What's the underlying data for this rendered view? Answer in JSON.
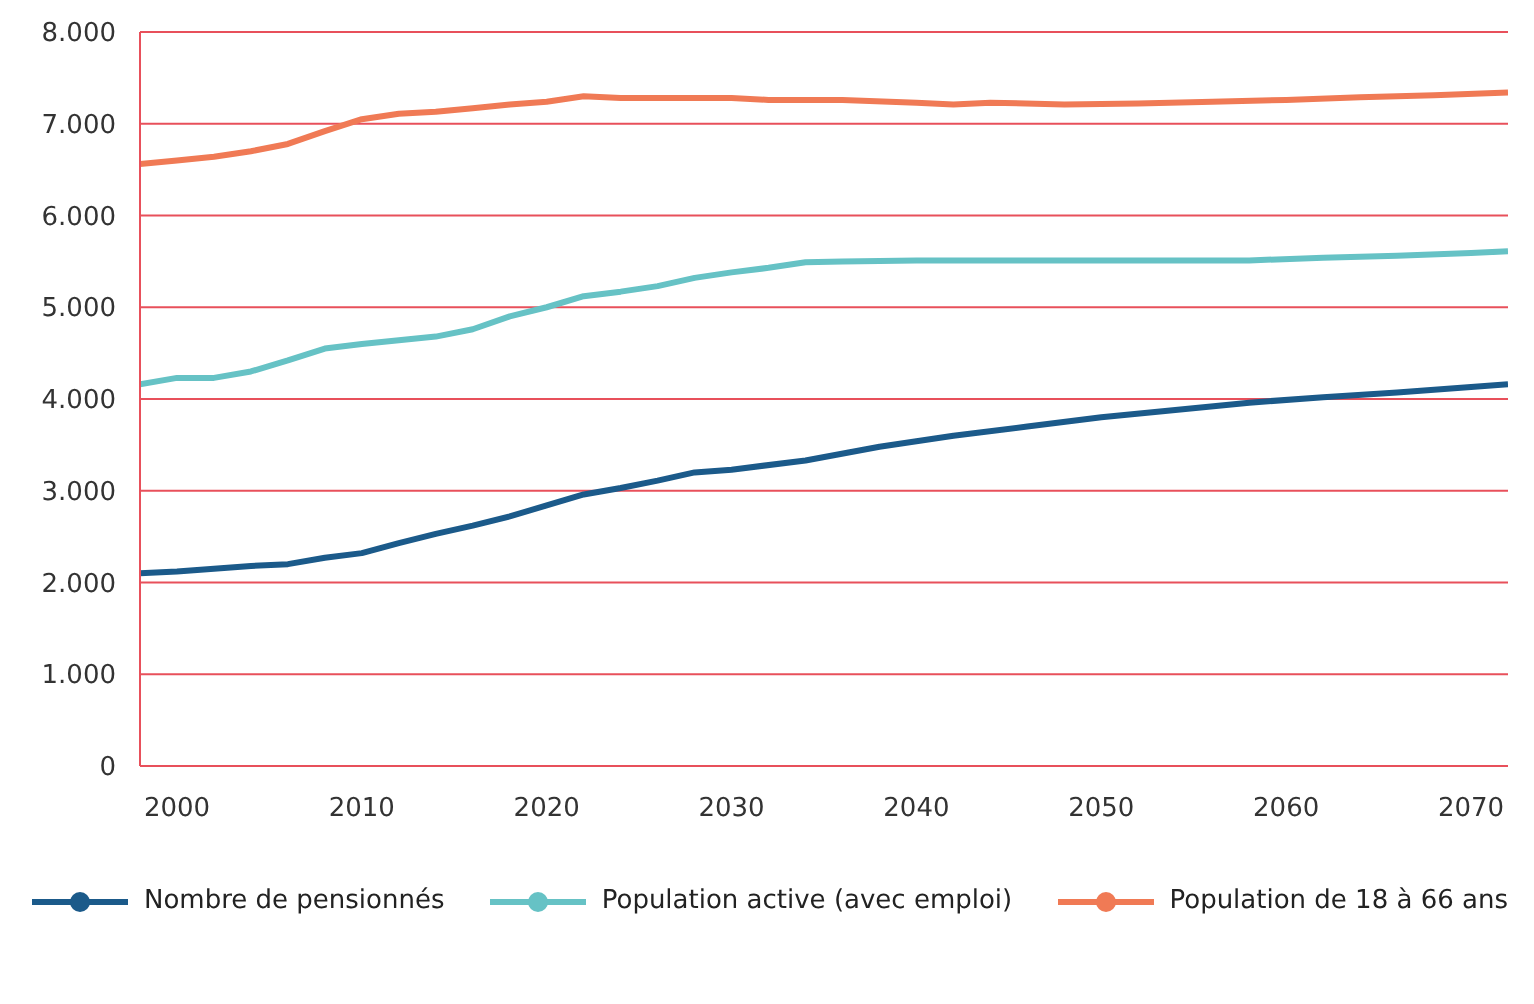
{
  "chart_data": {
    "type": "line",
    "xlim": [
      1998,
      2072
    ],
    "xticks": [
      2000,
      2010,
      2020,
      2030,
      2040,
      2050,
      2060,
      2070
    ],
    "ylim": [
      0,
      8000
    ],
    "yticks": [
      {
        "value": 0,
        "label": "0"
      },
      {
        "value": 1000,
        "label": "1.000"
      },
      {
        "value": 2000,
        "label": "2.000"
      },
      {
        "value": 3000,
        "label": "3.000"
      },
      {
        "value": 4000,
        "label": "4.000"
      },
      {
        "value": 5000,
        "label": "5.000"
      },
      {
        "value": 6000,
        "label": "6.000"
      },
      {
        "value": 7000,
        "label": "7.000"
      },
      {
        "value": 8000,
        "label": "8.000"
      }
    ],
    "grid": "y",
    "legend": "bottom",
    "marker": "none",
    "line_style": "solid",
    "series": [
      {
        "name": "Nombre de pensionnés",
        "color": "#1b5a8a",
        "x": [
          1998,
          2000,
          2002,
          2004,
          2006,
          2008,
          2010,
          2012,
          2014,
          2016,
          2018,
          2020,
          2022,
          2024,
          2026,
          2028,
          2030,
          2034,
          2038,
          2042,
          2046,
          2050,
          2054,
          2058,
          2062,
          2066,
          2070,
          2072
        ],
        "values": [
          2100,
          2120,
          2150,
          2180,
          2200,
          2270,
          2320,
          2430,
          2530,
          2620,
          2720,
          2840,
          2960,
          3030,
          3110,
          3200,
          3230,
          3330,
          3480,
          3600,
          3700,
          3800,
          3880,
          3960,
          4020,
          4070,
          4130,
          4160
        ]
      },
      {
        "name": "Population active (avec emploi)",
        "color": "#66c2c5",
        "x": [
          1998,
          2000,
          2002,
          2004,
          2006,
          2008,
          2010,
          2012,
          2014,
          2016,
          2018,
          2020,
          2022,
          2024,
          2026,
          2028,
          2030,
          2032,
          2034,
          2036,
          2040,
          2058,
          2062,
          2066,
          2070,
          2072
        ],
        "values": [
          4160,
          4230,
          4230,
          4300,
          4420,
          4550,
          4600,
          4640,
          4680,
          4760,
          4900,
          5000,
          5120,
          5170,
          5230,
          5320,
          5380,
          5430,
          5490,
          5500,
          5510,
          5510,
          5540,
          5560,
          5590,
          5610
        ]
      },
      {
        "name": "Population de 18 à 66 ans",
        "color": "#f07a55",
        "x": [
          1998,
          2000,
          2002,
          2004,
          2006,
          2008,
          2010,
          2012,
          2014,
          2016,
          2018,
          2020,
          2022,
          2024,
          2030,
          2032,
          2036,
          2040,
          2042,
          2044,
          2048,
          2052,
          2056,
          2060,
          2064,
          2068,
          2072
        ],
        "values": [
          6560,
          6600,
          6640,
          6700,
          6780,
          6920,
          7050,
          7110,
          7130,
          7170,
          7210,
          7240,
          7300,
          7280,
          7280,
          7260,
          7260,
          7230,
          7210,
          7230,
          7210,
          7220,
          7240,
          7260,
          7290,
          7310,
          7340
        ]
      }
    ]
  }
}
